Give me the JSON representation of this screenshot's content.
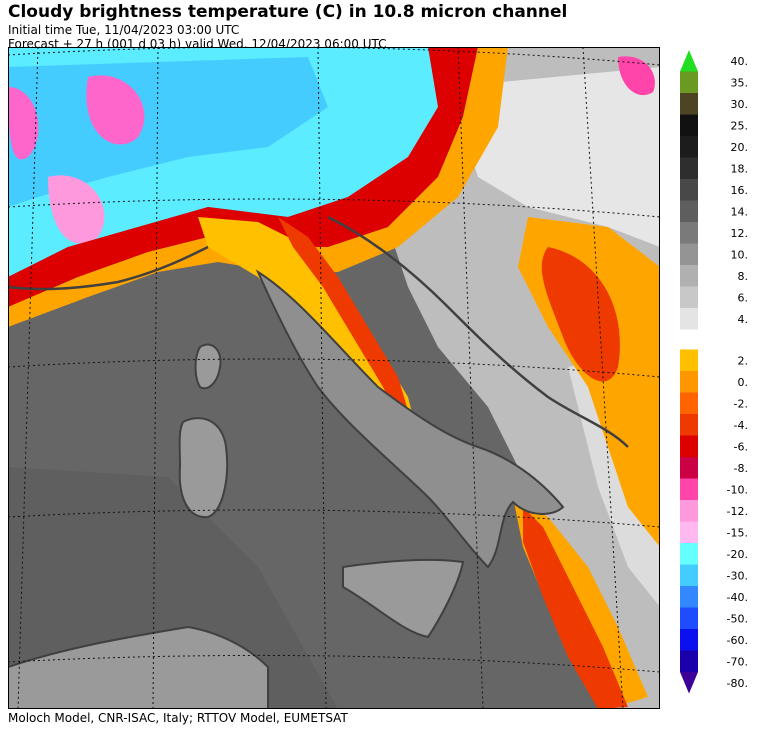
{
  "header": {
    "title": "Cloudy brightness temperature (C) in   10.8 micron channel",
    "initial_time": "Initial time  Tue, 11/04/2023  03:00 UTC",
    "forecast": "Forecast  +  27 h  (001 d 03 h)  valid Wed, 12/04/2023 06:00 UTC"
  },
  "credits": "Moloch Model, CNR-ISAC, Italy; RTTOV Model, EUMETSAT",
  "legend": {
    "upper": [
      {
        "label": "40.",
        "color": "#22dd22"
      },
      {
        "label": "35.",
        "color": "#6a9a22"
      },
      {
        "label": "30.",
        "color": "#4d4424"
      },
      {
        "label": "25.",
        "color": "#111111"
      },
      {
        "label": "20.",
        "color": "#1c1c1c"
      },
      {
        "label": "18.",
        "color": "#2e2e2e"
      },
      {
        "label": "16.",
        "color": "#484848"
      },
      {
        "label": "14.",
        "color": "#5e5e5e"
      },
      {
        "label": "12.",
        "color": "#7a7a7a"
      },
      {
        "label": "10.",
        "color": "#949494"
      },
      {
        "label": "8.",
        "color": "#b0b0b0"
      },
      {
        "label": "6.",
        "color": "#c8c8c8"
      },
      {
        "label": "4.",
        "color": "#e4e4e4"
      }
    ],
    "lower": [
      {
        "label": "2.",
        "color": "#ffc000"
      },
      {
        "label": "0.",
        "color": "#ff9600"
      },
      {
        "label": "-2.",
        "color": "#ff6400"
      },
      {
        "label": "-4.",
        "color": "#ee3a00"
      },
      {
        "label": "-6.",
        "color": "#dd0000"
      },
      {
        "label": "-8.",
        "color": "#cc0044"
      },
      {
        "label": "-10.",
        "color": "#ff44aa"
      },
      {
        "label": "-12.",
        "color": "#ff99dd"
      },
      {
        "label": "-15.",
        "color": "#ffb8f0"
      },
      {
        "label": "-20.",
        "color": "#66ffff"
      },
      {
        "label": "-30.",
        "color": "#44ccff"
      },
      {
        "label": "-40.",
        "color": "#3388ff"
      },
      {
        "label": "-50.",
        "color": "#1f4cff"
      },
      {
        "label": "-60.",
        "color": "#0a10ee"
      },
      {
        "label": "-70.",
        "color": "#1a00aa"
      },
      {
        "label": "-80.",
        "color": "#3c0099"
      }
    ]
  }
}
